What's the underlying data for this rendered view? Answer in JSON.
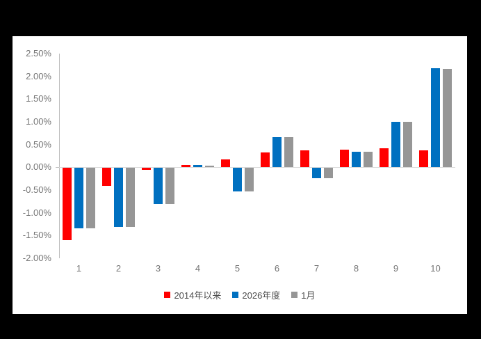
{
  "chart_data": {
    "type": "bar",
    "title": "",
    "xlabel": "",
    "ylabel": "",
    "ylim": [
      -2.0,
      2.5
    ],
    "grid": false,
    "legend_position": "bottom",
    "background_frame_color": "#000000",
    "panel_color": "#ffffff",
    "axis_line_color": "#bfbfbf",
    "zero_line_color": "#d9d9d9",
    "tick_text_color": "#757575",
    "legend_text_color": "#4d4d4d",
    "categories": [
      "1",
      "2",
      "3",
      "4",
      "5",
      "6",
      "7",
      "8",
      "9",
      "10"
    ],
    "y_ticks": [
      {
        "label": "2.50%",
        "value": 2.5
      },
      {
        "label": "2.00%",
        "value": 2.0
      },
      {
        "label": "1.50%",
        "value": 1.5
      },
      {
        "label": "1.00%",
        "value": 1.0
      },
      {
        "label": "0.50%",
        "value": 0.5
      },
      {
        "label": "0.00%",
        "value": 0.0
      },
      {
        "label": "-0.50%",
        "value": -0.5
      },
      {
        "label": "-1.00%",
        "value": -1.0
      },
      {
        "label": "-1.50%",
        "value": -1.5
      },
      {
        "label": "-2.00%",
        "value": -2.0
      }
    ],
    "series": [
      {
        "name": "2014年以来",
        "color": "#ff0000",
        "values": [
          -1.58,
          -0.4,
          -0.04,
          0.05,
          0.17,
          0.33,
          0.37,
          0.39,
          0.42,
          0.38
        ]
      },
      {
        "name": "2026年度",
        "color": "#0070c0",
        "values": [
          -1.32,
          -1.3,
          -0.79,
          0.05,
          -0.52,
          0.67,
          -0.22,
          0.34,
          1.0,
          2.18
        ]
      },
      {
        "name": "1月",
        "color": "#969696",
        "values": [
          -1.32,
          -1.3,
          -0.79,
          0.04,
          -0.51,
          0.67,
          -0.22,
          0.34,
          1.0,
          2.17
        ]
      }
    ]
  }
}
